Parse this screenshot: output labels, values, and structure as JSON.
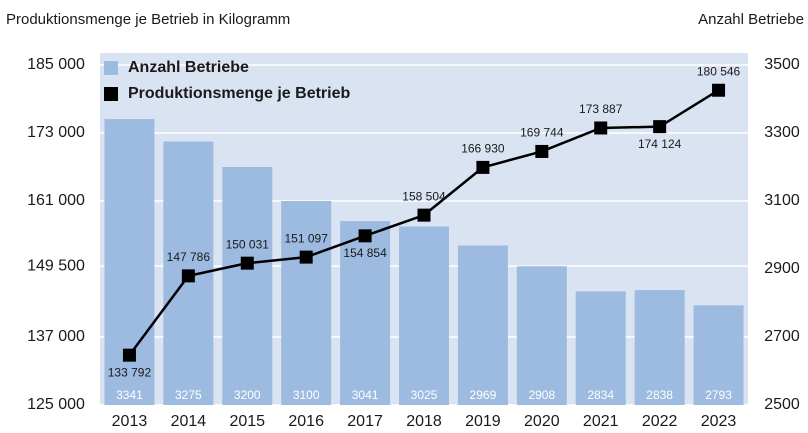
{
  "chart_data": {
    "type": "combo",
    "y_label": "Produktionsmenge je Betrieb in Kilogramm",
    "y2_label": "Anzahl Betriebe",
    "categories": [
      "2013",
      "2014",
      "2015",
      "2016",
      "2017",
      "2018",
      "2019",
      "2020",
      "2021",
      "2022",
      "2023"
    ],
    "ylim": [
      125000,
      185000
    ],
    "yticks": [
      {
        "value": 125000,
        "label": "125 000"
      },
      {
        "value": 137000,
        "label": "137 000"
      },
      {
        "value": 149500,
        "label": "149 500"
      },
      {
        "value": 161000,
        "label": "161 000"
      },
      {
        "value": 173000,
        "label": "173 000"
      },
      {
        "value": 185000,
        "label": "185 000"
      }
    ],
    "y2lim": [
      2500,
      3500
    ],
    "y2ticks": [
      2500,
      2700,
      2900,
      3100,
      3300,
      3500
    ],
    "series": [
      {
        "name": "Anzahl Betriebe",
        "type": "bar",
        "axis": "y2",
        "color": "#9dbbe0",
        "values": [
          3341,
          3275,
          3200,
          3100,
          3041,
          3025,
          2969,
          2908,
          2834,
          2838,
          2793
        ]
      },
      {
        "name": "Produktionsmenge je Betrieb",
        "type": "line",
        "color": "#000000",
        "values": [
          133792,
          147786,
          150031,
          151097,
          154854,
          158504,
          166930,
          169744,
          173887,
          174124,
          180546
        ],
        "value_labels": [
          "133 792",
          "147 786",
          "150 031",
          "151 097",
          "154 854",
          "158 504",
          "166 930",
          "169 744",
          "173 887",
          "174 124",
          "180 546"
        ]
      }
    ],
    "legend": "top-left",
    "background": "#d9e3f2"
  }
}
